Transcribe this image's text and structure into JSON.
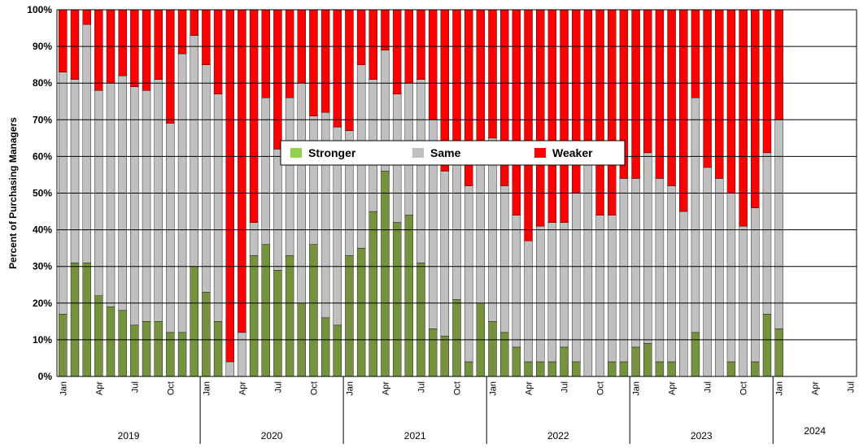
{
  "chart_data": {
    "type": "stacked_bar",
    "y_label": "Percent of Purchasing Managers",
    "categories": [
      "Jan",
      null,
      null,
      "Apr",
      null,
      null,
      "Jul",
      null,
      null,
      "Oct",
      null,
      null,
      "Jan",
      null,
      null,
      "Apr",
      null,
      null,
      "Jul",
      null,
      null,
      "Oct",
      null,
      null,
      "Jan",
      null,
      null,
      "Apr",
      null,
      null,
      "Jul",
      null,
      null,
      "Oct",
      null,
      null,
      "Jan",
      null,
      null,
      "Apr",
      null,
      null,
      "Jul",
      null,
      null,
      "Oct",
      null,
      null,
      "Jan",
      null,
      null,
      "Apr",
      null,
      null,
      "Jul",
      null,
      null,
      "Oct",
      null,
      null,
      "Jan",
      null,
      null,
      "Apr",
      null,
      null,
      "Jul"
    ],
    "years": [
      "2019",
      "2020",
      "2021",
      "2022",
      "2023",
      "2024"
    ],
    "series": [
      {
        "name": "Stronger",
        "color": "#76923c",
        "legend_color": "#92d050",
        "values": [
          17,
          31,
          31,
          22,
          19,
          18,
          14,
          15,
          15,
          12,
          12,
          30,
          23,
          15,
          0,
          0,
          33,
          36,
          29,
          33,
          20,
          36,
          16,
          14,
          33,
          35,
          45,
          56,
          42,
          44,
          31,
          13,
          11,
          21,
          4,
          20,
          15,
          12,
          8,
          4,
          4,
          4,
          8,
          4,
          0,
          0,
          4,
          4,
          8,
          9,
          4,
          4,
          0,
          12,
          0,
          0,
          4,
          0,
          4,
          17,
          13,
          null,
          null,
          null,
          null,
          null,
          null
        ]
      },
      {
        "name": "Same",
        "color": "#c0c0c0",
        "values": [
          66,
          50,
          65,
          56,
          61,
          64,
          65,
          63,
          66,
          57,
          76,
          63,
          62,
          62,
          4,
          12,
          9,
          40,
          33,
          43,
          60,
          35,
          56,
          54,
          34,
          50,
          36,
          33,
          35,
          36,
          50,
          57,
          45,
          41,
          48,
          40,
          50,
          40,
          36,
          33,
          37,
          38,
          34,
          46,
          58,
          44,
          40,
          50,
          46,
          52,
          50,
          48,
          45,
          64,
          57,
          54,
          46,
          41,
          42,
          44,
          57,
          null,
          null,
          null,
          null,
          null,
          null
        ]
      },
      {
        "name": "Weaker",
        "color": "#ff0000",
        "values": [
          17,
          19,
          4,
          22,
          20,
          18,
          21,
          22,
          19,
          31,
          12,
          7,
          15,
          23,
          96,
          88,
          58,
          24,
          38,
          24,
          20,
          29,
          28,
          32,
          33,
          15,
          19,
          11,
          23,
          20,
          19,
          30,
          44,
          38,
          48,
          40,
          35,
          48,
          56,
          63,
          59,
          58,
          58,
          50,
          42,
          56,
          56,
          46,
          46,
          39,
          46,
          48,
          55,
          24,
          43,
          46,
          50,
          59,
          54,
          39,
          30,
          null,
          null,
          null,
          null,
          null,
          null
        ]
      }
    ],
    "ylim": [
      0,
      100
    ],
    "yticks": [
      {
        "value": 0,
        "label": "0%"
      },
      {
        "value": 10,
        "label": "10%"
      },
      {
        "value": 20,
        "label": "20%"
      },
      {
        "value": 30,
        "label": "30%"
      },
      {
        "value": 40,
        "label": "40%"
      },
      {
        "value": 50,
        "label": "50%"
      },
      {
        "value": 60,
        "label": "60%"
      },
      {
        "value": 70,
        "label": "70%"
      },
      {
        "value": 80,
        "label": "80%"
      },
      {
        "value": 90,
        "label": "90%"
      },
      {
        "value": 100,
        "label": "100%"
      }
    ],
    "grid": true,
    "legend": "center"
  }
}
